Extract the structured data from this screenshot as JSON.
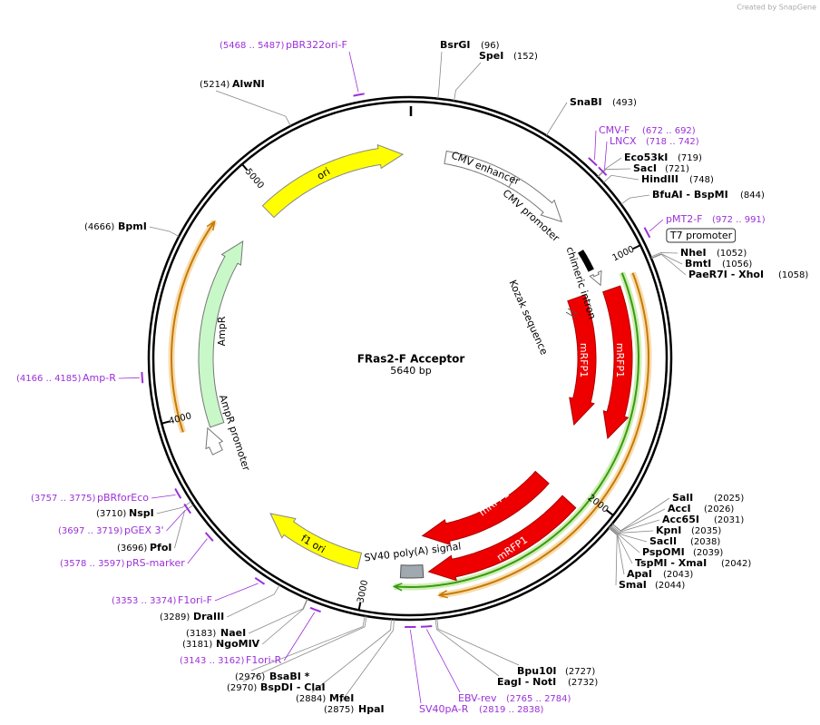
{
  "header": "Created by SnapGene",
  "title": "FRas2-F Acceptor",
  "length": "5640 bp",
  "total_bp": 5640,
  "ticks": [
    1000,
    2000,
    3000,
    4000,
    5000
  ],
  "features": [
    "ori",
    "CMV enhancer",
    "CMV promoter",
    "chimeric intron",
    "Kozak sequence",
    "mRFP1",
    "mRFP1",
    "mRFP1",
    "mRFP1",
    "SV40 poly(A) signal",
    "f1 ori",
    "AmpR",
    "AmpR promoter",
    "T7 promoter"
  ],
  "enzymes": [
    {
      "name": "BsrGI",
      "site": {
        "value": 96,
        "label": "(96)"
      }
    },
    {
      "name": "SpeI",
      "site": {
        "value": 152,
        "label": "(152)"
      }
    },
    {
      "name": "SnaBI",
      "site": {
        "value": 493,
        "label": "(493)"
      }
    },
    {
      "name": "Eco53kI",
      "site": {
        "value": 719,
        "label": "(719)"
      }
    },
    {
      "name": "SacI",
      "site": {
        "value": 721,
        "label": "(721)"
      }
    },
    {
      "name": "HindIII",
      "site": {
        "value": 748,
        "label": "(748)"
      }
    },
    {
      "name": "BfuAI  - BspMI",
      "site": {
        "value": 844,
        "label": "(844)"
      }
    },
    {
      "name": "NheI",
      "site": {
        "value": 1052,
        "label": "(1052)"
      }
    },
    {
      "name": "BmtI",
      "site": {
        "value": 1056,
        "label": "(1056)"
      }
    },
    {
      "name": "PaeR7I  - XhoI",
      "site": {
        "value": 1058,
        "label": "(1058)"
      }
    },
    {
      "name": "SalI",
      "site": {
        "value": 2025,
        "label": "(2025)"
      }
    },
    {
      "name": "AccI",
      "site": {
        "value": 2026,
        "label": "(2026)"
      }
    },
    {
      "name": "Acc65I",
      "site": {
        "value": 2031,
        "label": "(2031)"
      }
    },
    {
      "name": "KpnI",
      "site": {
        "value": 2035,
        "label": "(2035)"
      }
    },
    {
      "name": "SacII",
      "site": {
        "value": 2038,
        "label": "(2038)"
      }
    },
    {
      "name": "PspOMI",
      "site": {
        "value": 2039,
        "label": "(2039)"
      }
    },
    {
      "name": "TspMI  - XmaI",
      "site": {
        "value": 2042,
        "label": "(2042)"
      }
    },
    {
      "name": "ApaI",
      "site": {
        "value": 2043,
        "label": "(2043)"
      }
    },
    {
      "name": "SmaI",
      "site": {
        "value": 2044,
        "label": "(2044)"
      }
    },
    {
      "name": "Bpu10I",
      "site": {
        "value": 2727,
        "label": "(2727)"
      }
    },
    {
      "name": "EagI  - NotI",
      "site": {
        "value": 2732,
        "label": "(2732)"
      }
    },
    {
      "name": "HpaI",
      "site": {
        "value": 2875,
        "label": "(2875)"
      }
    },
    {
      "name": "MfeI",
      "site": {
        "value": 2884,
        "label": "(2884)"
      }
    },
    {
      "name": "BspDI  - ClaI",
      "site": {
        "value": 2970,
        "label": "(2970)"
      }
    },
    {
      "name": "BsaBI *",
      "site": {
        "value": 2976,
        "label": "(2976)"
      }
    },
    {
      "name": "NgoMIV",
      "site": {
        "value": 3181,
        "label": "(3181)"
      }
    },
    {
      "name": "NaeI",
      "site": {
        "value": 3183,
        "label": "(3183)"
      }
    },
    {
      "name": "DraIII",
      "site": {
        "value": 3289,
        "label": "(3289)"
      }
    },
    {
      "name": "PfoI",
      "site": {
        "value": 3696,
        "label": "(3696)"
      }
    },
    {
      "name": "NspI",
      "site": {
        "value": 3710,
        "label": "(3710)"
      }
    },
    {
      "name": "BpmI",
      "site": {
        "value": 4666,
        "label": "(4666)"
      }
    },
    {
      "name": "AlwNI",
      "site": {
        "value": 5214,
        "label": "(5214)"
      }
    }
  ],
  "primers": [
    {
      "name": "pBR322ori-F",
      "site": {
        "value": 5468,
        "label": "(5468 .. 5487)"
      }
    },
    {
      "name": "CMV-F",
      "site": {
        "value": 672,
        "label": "(672 .. 692)"
      }
    },
    {
      "name": "LNCX",
      "site": {
        "value": 718,
        "label": "(718 .. 742)"
      }
    },
    {
      "name": "pMT2-F",
      "site": {
        "value": 972,
        "label": "(972 .. 991)"
      }
    },
    {
      "name": "Amp-R",
      "site": {
        "value": 4166,
        "label": "(4166 .. 4185)"
      }
    },
    {
      "name": "pBRforEco",
      "site": {
        "value": 3757,
        "label": "(3757 .. 3775)"
      }
    },
    {
      "name": "pGEX 3'",
      "site": {
        "value": 3697,
        "label": "(3697 .. 3719)"
      }
    },
    {
      "name": "pRS-marker",
      "site": {
        "value": 3578,
        "label": "(3578 .. 3597)"
      }
    },
    {
      "name": "F1ori-F",
      "site": {
        "value": 3353,
        "label": "(3353 .. 3374)"
      }
    },
    {
      "name": "F1ori-R",
      "site": {
        "value": 3143,
        "label": "(3143 .. 3162)"
      }
    },
    {
      "name": "SV40pA-R",
      "site": {
        "value": 2819,
        "label": "(2819 .. 2838)"
      }
    },
    {
      "name": "EBV-rev",
      "site": {
        "value": 2765,
        "label": "(2765 .. 2784)"
      }
    }
  ]
}
